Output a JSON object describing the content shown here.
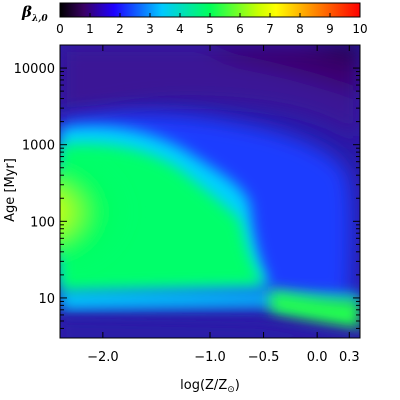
{
  "chart_data": {
    "type": "heatmap",
    "colorbar": {
      "symbol": "β",
      "subscript": "λ,0",
      "range": [
        0,
        10
      ],
      "ticks": [
        "0",
        "1",
        "2",
        "3",
        "4",
        "5",
        "6",
        "7",
        "8",
        "9",
        "10"
      ],
      "colors": [
        "#000000",
        "#3a0064",
        "#1e00ff",
        "#00c8ff",
        "#00ff5a",
        "#c8ff00",
        "#ffff00",
        "#ff9000",
        "#ff0000"
      ]
    },
    "x": {
      "label_main": "log(Z/Z",
      "label_sub": "⊙",
      "label_close": ")",
      "range": [
        -2.4,
        0.4
      ],
      "ticks": [
        {
          "value": -2.0,
          "label": "−2.0"
        },
        {
          "value": -1.0,
          "label": "−1.0"
        },
        {
          "value": -0.5,
          "label": "−0.5"
        },
        {
          "value": 0.0,
          "label": "0.0"
        },
        {
          "value": 0.3,
          "label": "0.3"
        }
      ]
    },
    "y": {
      "label_main": "Age",
      "label_unit": "[Myr]",
      "scale": "log",
      "range": [
        3,
        20000
      ],
      "ticks": [
        {
          "value": 10,
          "label": "10"
        },
        {
          "value": 100,
          "label": "100"
        },
        {
          "value": 1000,
          "label": "1000"
        },
        {
          "value": 10000,
          "label": "10000"
        }
      ]
    },
    "grid": false,
    "description_values": {
      "peak_value": 6.5,
      "peak_age_myr": 100,
      "peak_logZ": -2.3,
      "min_value": 0.0,
      "min_age_myr": 20000,
      "min_logZ": 0.4
    }
  }
}
